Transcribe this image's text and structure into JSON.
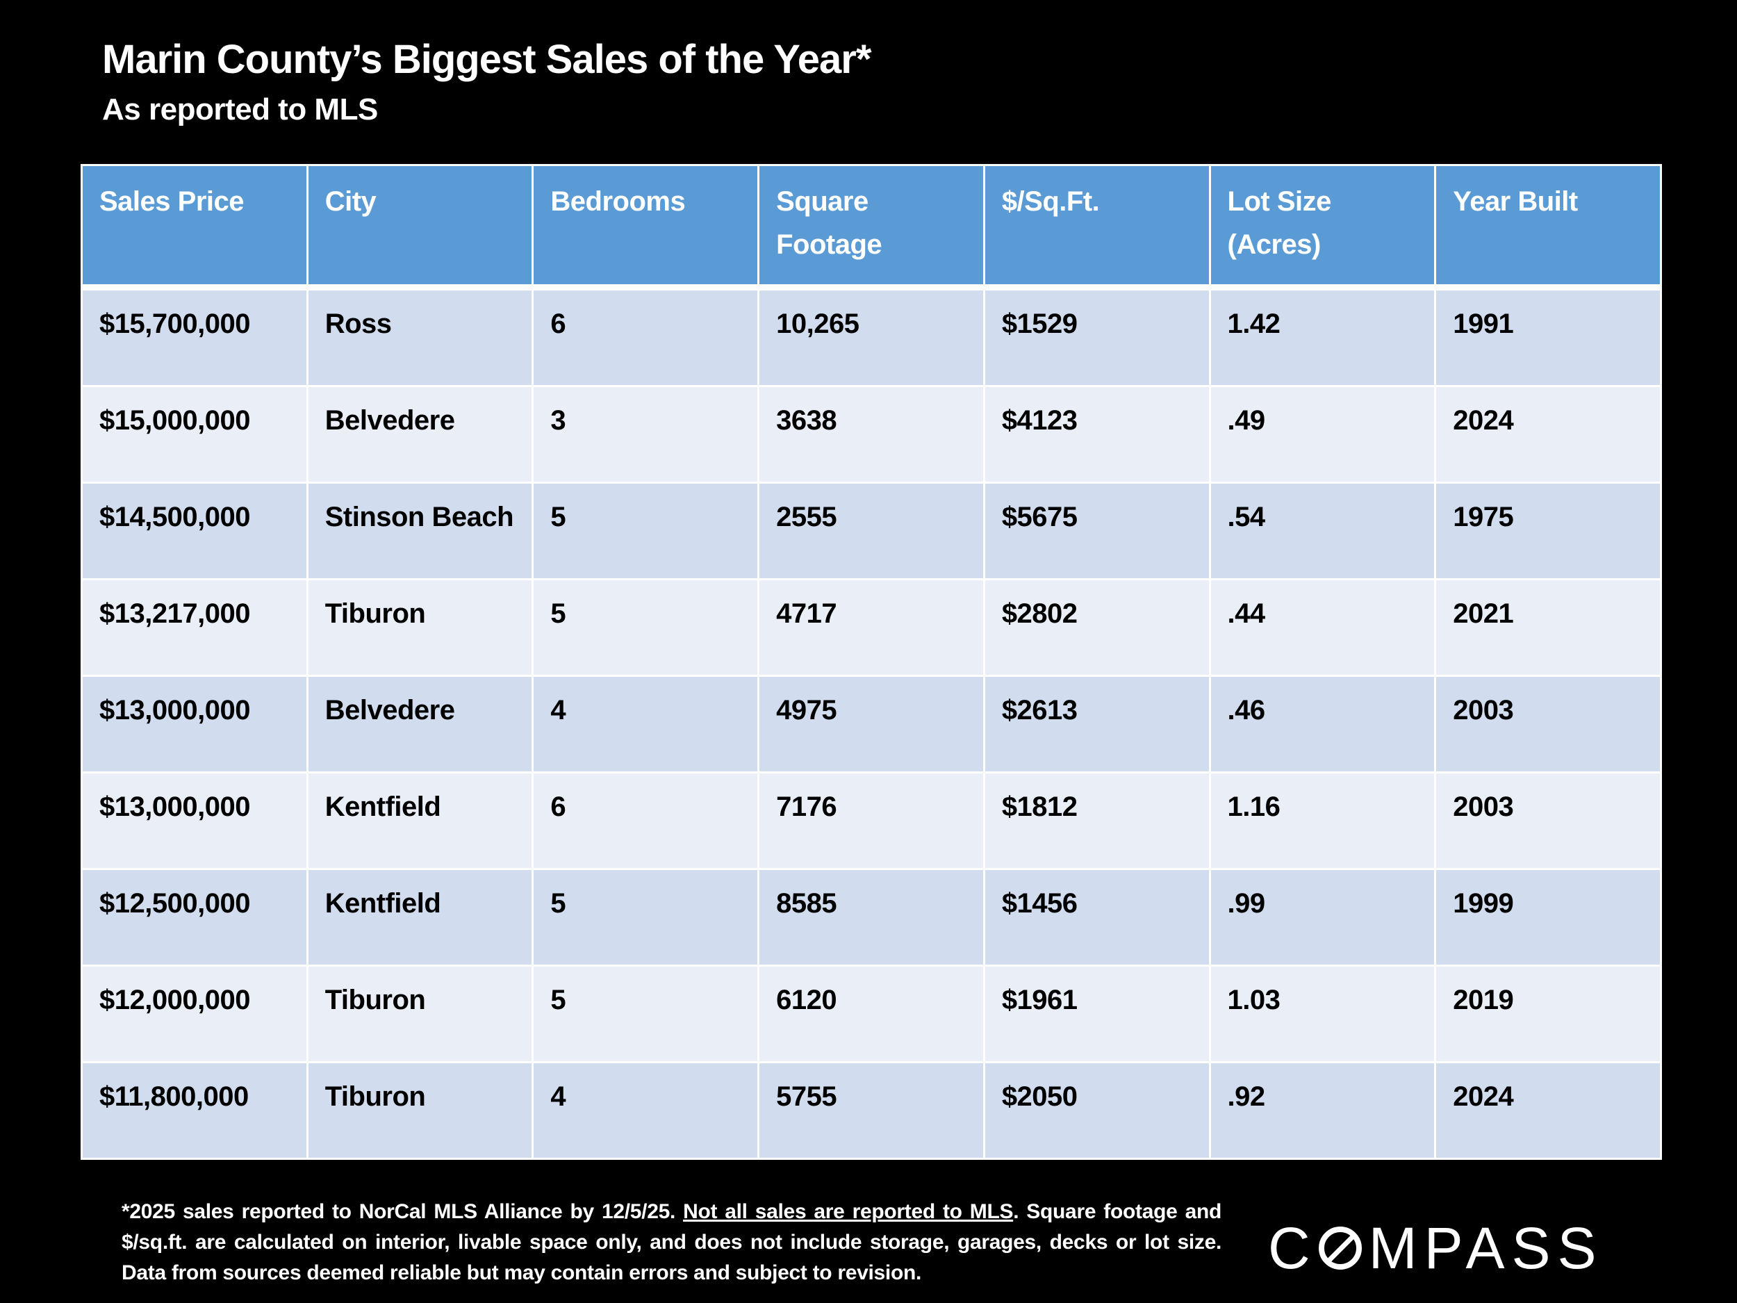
{
  "header": {
    "title": "Marin County’s Biggest Sales of the Year*",
    "subtitle": "As reported to MLS"
  },
  "table": {
    "columns": [
      "Sales Price",
      "City",
      "Bedrooms",
      "Square Footage",
      "$/Sq.Ft.",
      "Lot Size (Acres)",
      "Year Built"
    ],
    "rows": [
      [
        "$15,700,000",
        "Ross",
        "6",
        "10,265",
        "$1529",
        "1.42",
        "1991"
      ],
      [
        "$15,000,000",
        "Belvedere",
        "3",
        "3638",
        "$4123",
        ".49",
        "2024"
      ],
      [
        "$14,500,000",
        "Stinson Beach",
        "5",
        "2555",
        "$5675",
        ".54",
        "1975"
      ],
      [
        "$13,217,000",
        "Tiburon",
        "5",
        "4717",
        "$2802",
        ".44",
        "2021"
      ],
      [
        "$13,000,000",
        "Belvedere",
        "4",
        "4975",
        "$2613",
        ".46",
        "2003"
      ],
      [
        "$13,000,000",
        "Kentfield",
        "6",
        "7176",
        "$1812",
        "1.16",
        "2003"
      ],
      [
        "$12,500,000",
        "Kentfield",
        "5",
        "8585",
        "$1456",
        ".99",
        "1999"
      ],
      [
        "$12,000,000",
        "Tiburon",
        "5",
        "6120",
        "$1961",
        "1.03",
        "2019"
      ],
      [
        "$11,800,000",
        "Tiburon",
        "4",
        "5755",
        "$2050",
        ".92",
        "2024"
      ]
    ]
  },
  "footnote": {
    "part1": "*2025 sales reported to NorCal MLS Alliance by 12/5/25. ",
    "underlined": "Not all sales are reported to MLS",
    "part2": ". Square footage and $/sq.ft. are calculated on interior, livable space only, and does not include storage, garages, decks or lot size. Data from sources deemed reliable but may contain errors and subject to revision."
  },
  "logo": {
    "text": "COMPASS",
    "before_o": "C",
    "after_o": "MPASS"
  },
  "colors": {
    "header_bg": "#5b9bd5",
    "row_odd": "#d1ddee",
    "row_even": "#e9eef7",
    "background": "#000000"
  }
}
